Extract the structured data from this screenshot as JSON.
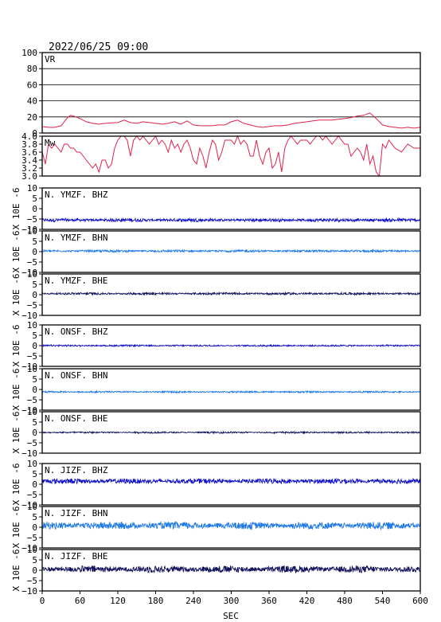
{
  "title": "2022/06/25 09:00",
  "colors": {
    "vr": "#e0204a",
    "mw": "#e0204a",
    "bhz": "#1010c8",
    "bhn": "#1e78e6",
    "bhe": "#10105a",
    "frame": "#000000"
  },
  "chart_data": {
    "type": "line",
    "xlabel": "SEC",
    "xlim": [
      0,
      600
    ],
    "xticks": [
      0,
      60,
      120,
      180,
      240,
      300,
      360,
      420,
      480,
      540,
      600
    ],
    "panels": [
      {
        "name": "VR",
        "ylim": [
          0,
          100
        ],
        "yticks": [
          0,
          20,
          40,
          60,
          80,
          100
        ],
        "grid": true,
        "series": [
          {
            "x": [
              0,
              10,
              20,
              30,
              40,
              45,
              50,
              60,
              70,
              80,
              90,
              100,
              120,
              130,
              140,
              150,
              160,
              170,
              180,
              190,
              200,
              210,
              220,
              230,
              240,
              250,
              260,
              270,
              280,
              290,
              300,
              310,
              320,
              330,
              340,
              350,
              360,
              370,
              380,
              390,
              400,
              410,
              420,
              430,
              440,
              450,
              460,
              470,
              480,
              490,
              500,
              510,
              520,
              530,
              540,
              550,
              560,
              570,
              580,
              590,
              600
            ],
            "values": [
              8,
              7,
              7,
              9,
              19,
              22,
              21,
              18,
              14,
              12,
              11,
              12,
              13,
              16,
              13,
              12,
              14,
              13,
              12,
              11,
              12,
              14,
              11,
              15,
              10,
              9,
              9,
              9,
              10,
              10,
              14,
              16,
              12,
              10,
              8,
              7,
              8,
              9,
              9,
              10,
              12,
              13,
              14,
              15,
              16,
              16,
              16,
              17,
              18,
              19,
              21,
              22,
              25,
              18,
              10,
              8,
              7,
              6,
              7,
              6,
              7
            ]
          }
        ]
      },
      {
        "name": "Mw",
        "ylim": [
          3.0,
          4.0
        ],
        "yticks": [
          3.0,
          3.2,
          3.4,
          3.6,
          3.8,
          4.0
        ],
        "tick_labels": [
          "3.0",
          "3.2",
          "3.4",
          "3.6",
          "3.8",
          "4.0"
        ],
        "grid": false,
        "series": [
          {
            "x": [
              0,
              5,
              10,
              15,
              20,
              25,
              30,
              35,
              40,
              45,
              50,
              55,
              60,
              65,
              70,
              75,
              80,
              85,
              90,
              95,
              100,
              105,
              110,
              115,
              120,
              125,
              130,
              135,
              140,
              145,
              150,
              155,
              160,
              165,
              170,
              175,
              180,
              185,
              190,
              195,
              200,
              205,
              210,
              215,
              220,
              225,
              230,
              235,
              240,
              245,
              250,
              255,
              260,
              265,
              270,
              275,
              280,
              285,
              290,
              295,
              300,
              305,
              310,
              315,
              320,
              325,
              330,
              335,
              340,
              345,
              350,
              355,
              360,
              365,
              370,
              375,
              380,
              385,
              390,
              395,
              400,
              405,
              410,
              415,
              420,
              425,
              430,
              435,
              440,
              445,
              450,
              455,
              460,
              465,
              470,
              475,
              480,
              485,
              490,
              495,
              500,
              505,
              510,
              515,
              520,
              525,
              530,
              535,
              540,
              545,
              550,
              555,
              560,
              570,
              580,
              590,
              600
            ],
            "values": [
              3.6,
              3.3,
              3.8,
              3.7,
              3.8,
              3.7,
              3.6,
              3.8,
              3.8,
              3.7,
              3.7,
              3.6,
              3.6,
              3.5,
              3.4,
              3.3,
              3.2,
              3.3,
              3.1,
              3.4,
              3.4,
              3.2,
              3.3,
              3.7,
              3.9,
              4.0,
              4.0,
              3.9,
              3.5,
              3.9,
              4.0,
              3.9,
              4.0,
              3.9,
              3.8,
              3.9,
              4.0,
              3.8,
              3.9,
              3.8,
              3.6,
              3.9,
              3.7,
              3.8,
              3.6,
              3.8,
              3.9,
              3.7,
              3.4,
              3.3,
              3.7,
              3.5,
              3.2,
              3.6,
              3.9,
              3.8,
              3.4,
              3.6,
              3.9,
              3.9,
              3.9,
              3.8,
              4.0,
              3.8,
              3.9,
              3.8,
              3.5,
              3.5,
              3.9,
              3.5,
              3.3,
              3.6,
              3.7,
              3.2,
              3.3,
              3.6,
              3.1,
              3.7,
              3.9,
              4.0,
              3.9,
              3.8,
              3.9,
              3.9,
              3.9,
              3.8,
              3.9,
              4.0,
              4.0,
              3.9,
              4.0,
              3.9,
              3.8,
              3.9,
              4.0,
              3.9,
              3.8,
              3.8,
              3.5,
              3.6,
              3.7,
              3.6,
              3.4,
              3.8,
              3.3,
              3.5,
              3.1,
              3.0,
              3.8,
              3.7,
              3.9,
              3.8,
              3.7,
              3.6,
              3.8,
              3.7,
              3.7
            ]
          }
        ]
      },
      {
        "name": "N. YMZF. BHZ",
        "ylabel": "X 10E -6",
        "ylim": [
          -10,
          10
        ],
        "yticks": [
          -10,
          -5,
          0,
          5,
          10
        ],
        "baseline": -5.5,
        "amplitude": 0.6,
        "color_key": "bhz"
      },
      {
        "name": "N. YMZF. BHN",
        "ylabel": "X 10E -6",
        "ylim": [
          -10,
          10
        ],
        "yticks": [
          -10,
          -5,
          0,
          5,
          10
        ],
        "baseline": 0.3,
        "amplitude": 0.4,
        "color_key": "bhn"
      },
      {
        "name": "N. YMZF. BHE",
        "ylabel": "X 10E -6",
        "ylim": [
          -10,
          10
        ],
        "yticks": [
          -10,
          -5,
          0,
          5,
          10
        ],
        "baseline": 0.5,
        "amplitude": 0.4,
        "color_key": "bhe"
      },
      {
        "name": "N. ONSF. BHZ",
        "ylabel": "X 10E -6",
        "ylim": [
          -10,
          10
        ],
        "yticks": [
          -10,
          -5,
          0,
          5,
          10
        ],
        "baseline": 0.0,
        "amplitude": 0.3,
        "color_key": "bhz"
      },
      {
        "name": "N. ONSF. BHN",
        "ylabel": "X 10E -6",
        "ylim": [
          -10,
          10
        ],
        "yticks": [
          -10,
          -5,
          0,
          5,
          10
        ],
        "baseline": -1.2,
        "amplitude": 0.3,
        "color_key": "bhn"
      },
      {
        "name": "N. ONSF. BHE",
        "ylabel": "X 10E -6",
        "ylim": [
          -10,
          10
        ],
        "yticks": [
          -10,
          -5,
          0,
          5,
          10
        ],
        "baseline": 0.0,
        "amplitude": 0.3,
        "color_key": "bhe"
      },
      {
        "name": "N. JIZF. BHZ",
        "ylabel": "X 10E -6",
        "ylim": [
          -10,
          10
        ],
        "yticks": [
          -10,
          -5,
          0,
          5,
          10
        ],
        "baseline": 1.5,
        "amplitude": 0.9,
        "color_key": "bhz"
      },
      {
        "name": "N. JIZF. BHN",
        "ylabel": "X 10E -6",
        "ylim": [
          -10,
          10
        ],
        "yticks": [
          -10,
          -5,
          0,
          5,
          10
        ],
        "baseline": 0.8,
        "amplitude": 1.3,
        "color_key": "bhn"
      },
      {
        "name": "N. JIZF. BHE",
        "ylabel": "X 10E -6",
        "ylim": [
          -10,
          10
        ],
        "yticks": [
          -10,
          -5,
          0,
          5,
          10
        ],
        "baseline": 0.5,
        "amplitude": 1.2,
        "color_key": "bhe"
      }
    ]
  }
}
